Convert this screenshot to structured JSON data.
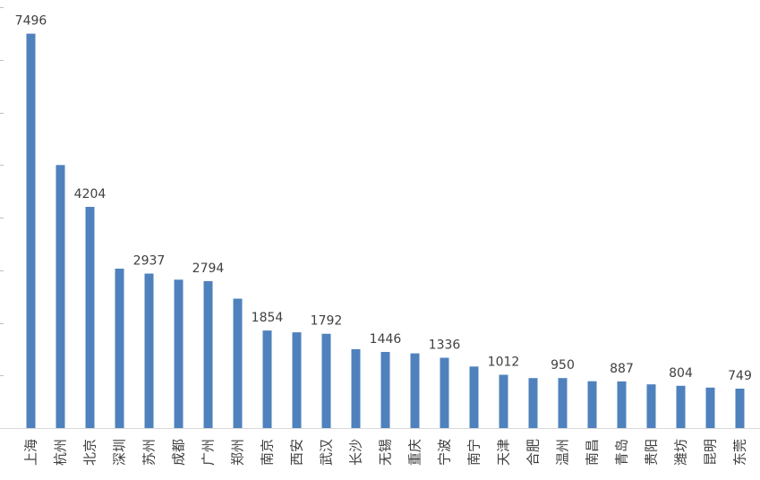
{
  "chart_data": {
    "type": "bar",
    "title": "",
    "xlabel": "",
    "ylabel": "",
    "ylim": [
      0,
      8000
    ],
    "grid": false,
    "legend": "none",
    "bar_color": "#4f81bd",
    "categories": [
      "上海",
      "杭州",
      "北京",
      "深圳",
      "苏州",
      "成都",
      "广州",
      "郑州",
      "南京",
      "西安",
      "武汉",
      "长沙",
      "无锡",
      "重庆",
      "宁波",
      "南宁",
      "天津",
      "合肥",
      "温州",
      "南昌",
      "青岛",
      "贵阳",
      "潍坊",
      "昆明",
      "东莞"
    ],
    "values": [
      7496,
      5000,
      4204,
      3030,
      2937,
      2820,
      2794,
      2460,
      1854,
      1820,
      1792,
      1500,
      1446,
      1420,
      1336,
      1170,
      1012,
      950,
      950,
      890,
      887,
      830,
      804,
      770,
      749
    ],
    "data_labels": [
      {
        "index": 0,
        "text": "7496"
      },
      {
        "index": 2,
        "text": "4204"
      },
      {
        "index": 4,
        "text": "2937"
      },
      {
        "index": 6,
        "text": "2794"
      },
      {
        "index": 8,
        "text": "1854"
      },
      {
        "index": 10,
        "text": "1792"
      },
      {
        "index": 12,
        "text": "1446"
      },
      {
        "index": 14,
        "text": "1336"
      },
      {
        "index": 16,
        "text": "1012"
      },
      {
        "index": 18,
        "text": "950"
      },
      {
        "index": 20,
        "text": "887"
      },
      {
        "index": 22,
        "text": "804"
      },
      {
        "index": 24,
        "text": "749"
      }
    ]
  }
}
